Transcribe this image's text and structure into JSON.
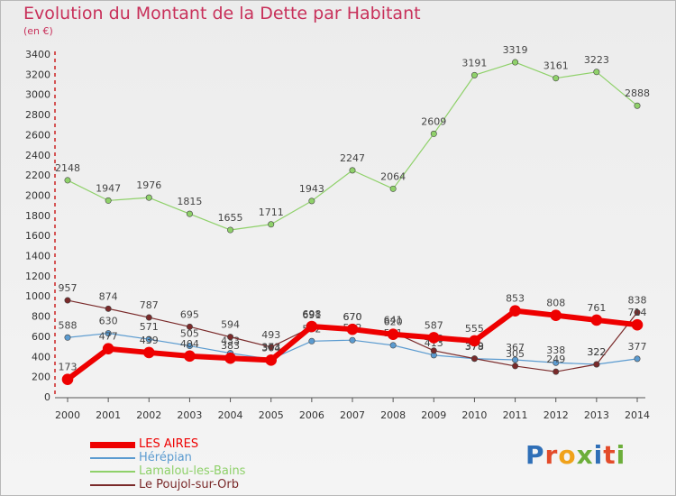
{
  "title": "Evolution du Montant de la Dette par Habitant",
  "subtitle": "(en €)",
  "logo": "Proxiti",
  "chart_data": {
    "type": "line",
    "title": "Evolution du Montant de la Dette par Habitant",
    "subtitle": "(en €)",
    "x": [
      "2000",
      "2001",
      "2002",
      "2003",
      "2004",
      "2005",
      "2006",
      "2007",
      "2008",
      "2009",
      "2010",
      "2011",
      "2012",
      "2013",
      "2014"
    ],
    "ylim": [
      0,
      3400
    ],
    "yticks": [
      0,
      200,
      400,
      600,
      800,
      1000,
      1200,
      1400,
      1600,
      1800,
      2000,
      2200,
      2400,
      2600,
      2800,
      3000,
      3200,
      3400
    ],
    "grid": false,
    "legend_position": "bottom-left",
    "series": [
      {
        "name": "Lamalou-les-Bains",
        "color": "#8fd16a",
        "width": 1.2,
        "values": [
          2148,
          1947,
          1976,
          1815,
          1655,
          1711,
          1943,
          2247,
          2064,
          2609,
          3191,
          3319,
          3161,
          3223,
          2888
        ]
      },
      {
        "name": "Hérépian",
        "color": "#5b9bd0",
        "width": 1.2,
        "values": [
          588,
          630,
          571,
          505,
          433,
          373,
          552,
          562,
          511,
          413,
          378,
          367,
          338,
          322,
          377
        ]
      },
      {
        "name": "Le Poujol-sur-Orb",
        "color": "#7a2a2a",
        "width": 1.2,
        "values": [
          957,
          874,
          787,
          695,
          594,
          493,
          691,
          670,
          641,
          458,
          379,
          305,
          249,
          322,
          838
        ]
      },
      {
        "name": "LES AIRES",
        "color": "#ee0000",
        "width": 6,
        "values": [
          173,
          477,
          439,
          404,
          383,
          364,
          698,
          670,
          620,
          587,
          555,
          853,
          808,
          761,
          714
        ]
      }
    ]
  }
}
